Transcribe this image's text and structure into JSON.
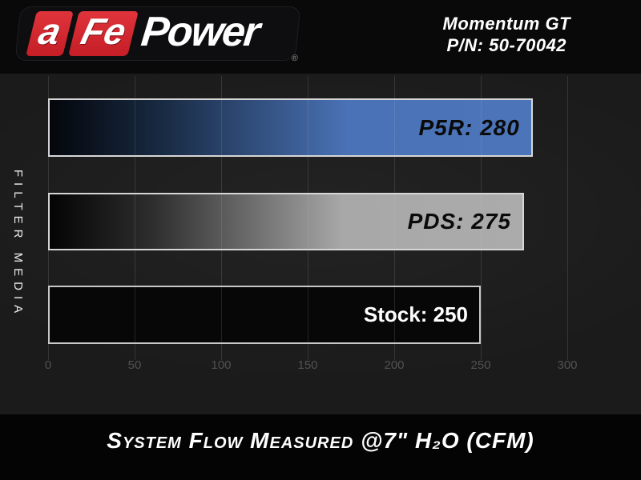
{
  "header": {
    "logo": {
      "brand_a": "a",
      "brand_fe": "Fe",
      "brand_power": "Power",
      "registered": "®"
    },
    "product_name": "Momentum GT",
    "part_number": "P/N: 50-70042"
  },
  "chart_data": {
    "type": "bar",
    "orientation": "horizontal",
    "categories": [
      "P5R",
      "PDS",
      "Stock"
    ],
    "values": [
      280,
      275,
      250
    ],
    "bar_labels": [
      "P5R: 280",
      "PDS: 275",
      "Stock: 250"
    ],
    "bar_colors": [
      "#4a72b6",
      "#a9a9a9",
      "#070707"
    ],
    "xticks": [
      0,
      50,
      100,
      150,
      200,
      250,
      300
    ],
    "xlim": [
      0,
      300
    ],
    "grid": "vertical",
    "legend": "none",
    "ylabel": "FILTER MEDIA",
    "caption": "System Flow Measured @7\" H₂O (CFM)"
  },
  "colors": {
    "accent_red": "#d2232a",
    "bar_blue": "#4a72b6",
    "bar_gray": "#a9a9a9",
    "chart_background": "#1b1b1b",
    "tick_label": "#515151"
  }
}
